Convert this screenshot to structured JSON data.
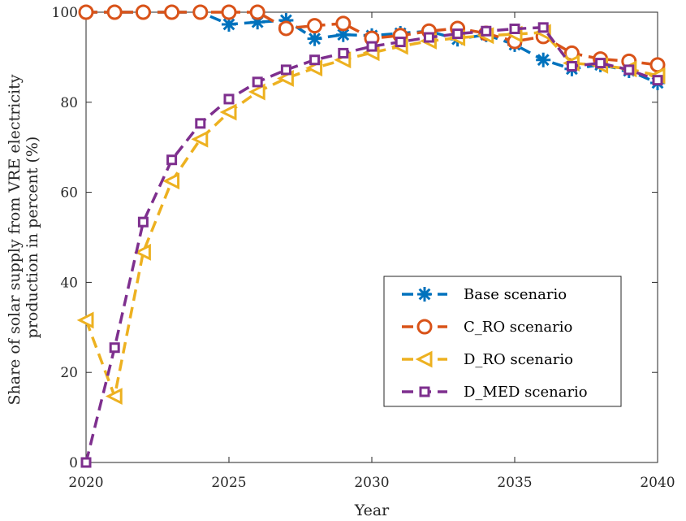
{
  "chart_data": {
    "type": "line",
    "xlabel": "Year",
    "ylabel_lines": [
      "Share of solar supply from VRE electricity",
      "production in percent (%)"
    ],
    "xlim": [
      2020,
      2040
    ],
    "ylim": [
      0,
      100
    ],
    "xticks": [
      "2020",
      "2025",
      "2030",
      "2035",
      "2040"
    ],
    "yticks": [
      "0",
      "20",
      "40",
      "60",
      "80",
      "100"
    ],
    "grid": false,
    "legend_position": "bottom-right",
    "x": [
      2020,
      2021,
      2022,
      2023,
      2024,
      2025,
      2026,
      2027,
      2028,
      2029,
      2030,
      2031,
      2032,
      2033,
      2034,
      2035,
      2036,
      2037,
      2038,
      2039,
      2040
    ],
    "series": [
      {
        "name": "Base scenario",
        "color": "#0072BD",
        "marker": "asterisk",
        "values": [
          100,
          100,
          100,
          100,
          100,
          97.3,
          97.8,
          98.2,
          94.1,
          95.0,
          94.8,
          95.3,
          95.8,
          94.0,
          95.0,
          92.8,
          89.4,
          87.4,
          88.3,
          87.0,
          84.3
        ]
      },
      {
        "name": "C_RO scenario",
        "color": "#D95319",
        "marker": "circle",
        "values": [
          100,
          100,
          100,
          100,
          100,
          100,
          100,
          96.4,
          97.0,
          97.5,
          94.2,
          94.8,
          95.8,
          96.4,
          95.3,
          93.5,
          94.6,
          90.9,
          89.6,
          89.1,
          88.3
        ]
      },
      {
        "name": "D_RO scenario",
        "color": "#EDB120",
        "marker": "triangle-left",
        "values": [
          31.6,
          14.7,
          46.7,
          62.5,
          71.8,
          77.8,
          82.3,
          85.3,
          87.6,
          89.4,
          91.0,
          92.4,
          93.6,
          94.3,
          94.8,
          95.1,
          95.5,
          88.7,
          88.2,
          87.4,
          85.9
        ]
      },
      {
        "name": "D_MED scenario",
        "color": "#7E2F8E",
        "marker": "square",
        "values": [
          0,
          25.5,
          53.4,
          67.2,
          75.3,
          80.7,
          84.5,
          87.2,
          89.4,
          90.9,
          92.4,
          93.4,
          94.4,
          95.2,
          95.8,
          96.3,
          96.6,
          88.0,
          88.7,
          87.2,
          84.9
        ]
      }
    ]
  }
}
